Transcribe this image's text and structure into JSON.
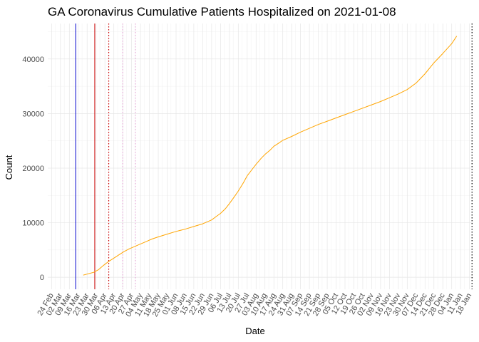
{
  "chart_data": {
    "type": "line",
    "title": "GA Coronavirus Cumulative Patients Hospitalized on 2021-01-08",
    "xlabel": "Date",
    "ylabel": "Count",
    "x_range": [
      "2020-02-21",
      "2021-01-21"
    ],
    "ylim": [
      -2200,
      46500
    ],
    "y_ticks": [
      0,
      10000,
      20000,
      30000,
      40000
    ],
    "x_ticks": [
      {
        "date": "2020-02-24",
        "label": "24 Feb"
      },
      {
        "date": "2020-03-02",
        "label": "02 Mar"
      },
      {
        "date": "2020-03-09",
        "label": "09 Mar"
      },
      {
        "date": "2020-03-16",
        "label": "16 Mar"
      },
      {
        "date": "2020-03-23",
        "label": "23 Mar"
      },
      {
        "date": "2020-03-30",
        "label": "30 Mar"
      },
      {
        "date": "2020-04-06",
        "label": "06 Apr"
      },
      {
        "date": "2020-04-13",
        "label": "13 Apr"
      },
      {
        "date": "2020-04-20",
        "label": "20 Apr"
      },
      {
        "date": "2020-04-27",
        "label": "27 Apr"
      },
      {
        "date": "2020-05-04",
        "label": "04 May"
      },
      {
        "date": "2020-05-11",
        "label": "11 May"
      },
      {
        "date": "2020-05-18",
        "label": "18 May"
      },
      {
        "date": "2020-05-25",
        "label": "25 May"
      },
      {
        "date": "2020-06-01",
        "label": "01 Jun"
      },
      {
        "date": "2020-06-08",
        "label": "08 Jun"
      },
      {
        "date": "2020-06-15",
        "label": "15 Jun"
      },
      {
        "date": "2020-06-22",
        "label": "22 Jun"
      },
      {
        "date": "2020-06-29",
        "label": "29 Jun"
      },
      {
        "date": "2020-07-06",
        "label": "06 Jul"
      },
      {
        "date": "2020-07-13",
        "label": "13 Jul"
      },
      {
        "date": "2020-07-20",
        "label": "20 Jul"
      },
      {
        "date": "2020-07-27",
        "label": "27 Jul"
      },
      {
        "date": "2020-08-03",
        "label": "03 Aug"
      },
      {
        "date": "2020-08-10",
        "label": "10 Aug"
      },
      {
        "date": "2020-08-17",
        "label": "17 Aug"
      },
      {
        "date": "2020-08-24",
        "label": "24 Aug"
      },
      {
        "date": "2020-08-31",
        "label": "31 Aug"
      },
      {
        "date": "2020-09-07",
        "label": "07 Sep"
      },
      {
        "date": "2020-09-14",
        "label": "14 Sep"
      },
      {
        "date": "2020-09-21",
        "label": "21 Sep"
      },
      {
        "date": "2020-09-28",
        "label": "28 Sep"
      },
      {
        "date": "2020-10-05",
        "label": "05 Oct"
      },
      {
        "date": "2020-10-12",
        "label": "12 Oct"
      },
      {
        "date": "2020-10-19",
        "label": "19 Oct"
      },
      {
        "date": "2020-10-26",
        "label": "26 Oct"
      },
      {
        "date": "2020-11-02",
        "label": "02 Nov"
      },
      {
        "date": "2020-11-09",
        "label": "09 Nov"
      },
      {
        "date": "2020-11-16",
        "label": "16 Nov"
      },
      {
        "date": "2020-11-23",
        "label": "23 Nov"
      },
      {
        "date": "2020-11-30",
        "label": "30 Nov"
      },
      {
        "date": "2020-12-07",
        "label": "07 Dec"
      },
      {
        "date": "2020-12-14",
        "label": "14 Dec"
      },
      {
        "date": "2020-12-21",
        "label": "21 Dec"
      },
      {
        "date": "2020-12-28",
        "label": "28 Dec"
      },
      {
        "date": "2021-01-04",
        "label": "04 Jan"
      },
      {
        "date": "2021-01-11",
        "label": "11 Jan"
      },
      {
        "date": "2021-01-18",
        "label": "18 Jan"
      }
    ],
    "vlines": [
      {
        "date": "2020-03-14",
        "color": "#0000cc",
        "style": "solid"
      },
      {
        "date": "2020-03-29",
        "color": "#cc0000",
        "style": "solid"
      },
      {
        "date": "2020-04-09",
        "color": "#cc0000",
        "style": "dotted"
      },
      {
        "date": "2020-04-20",
        "color": "#e6a8d8",
        "style": "dotted"
      },
      {
        "date": "2020-04-30",
        "color": "#e6a8d8",
        "style": "dotted"
      },
      {
        "date": "2021-01-20",
        "color": "#000000",
        "style": "dotted"
      }
    ],
    "series": [
      {
        "name": "Cumulative Patients Hospitalized",
        "color": "#ffa500",
        "points": [
          [
            "2020-03-20",
            400
          ],
          [
            "2020-03-24",
            650
          ],
          [
            "2020-03-28",
            900
          ],
          [
            "2020-04-01",
            1400
          ],
          [
            "2020-04-05",
            2200
          ],
          [
            "2020-04-09",
            2900
          ],
          [
            "2020-04-13",
            3500
          ],
          [
            "2020-04-17",
            4100
          ],
          [
            "2020-04-21",
            4700
          ],
          [
            "2020-04-25",
            5200
          ],
          [
            "2020-04-29",
            5600
          ],
          [
            "2020-05-03",
            6000
          ],
          [
            "2020-05-08",
            6500
          ],
          [
            "2020-05-13",
            7000
          ],
          [
            "2020-05-18",
            7400
          ],
          [
            "2020-05-25",
            7900
          ],
          [
            "2020-06-01",
            8400
          ],
          [
            "2020-06-08",
            8800
          ],
          [
            "2020-06-15",
            9300
          ],
          [
            "2020-06-22",
            9800
          ],
          [
            "2020-06-29",
            10500
          ],
          [
            "2020-07-03",
            11200
          ],
          [
            "2020-07-06",
            11700
          ],
          [
            "2020-07-10",
            12600
          ],
          [
            "2020-07-13",
            13500
          ],
          [
            "2020-07-17",
            14800
          ],
          [
            "2020-07-20",
            15800
          ],
          [
            "2020-07-24",
            17300
          ],
          [
            "2020-07-27",
            18600
          ],
          [
            "2020-07-31",
            19800
          ],
          [
            "2020-08-03",
            20700
          ],
          [
            "2020-08-07",
            21800
          ],
          [
            "2020-08-10",
            22500
          ],
          [
            "2020-08-14",
            23300
          ],
          [
            "2020-08-17",
            24000
          ],
          [
            "2020-08-21",
            24600
          ],
          [
            "2020-08-24",
            25100
          ],
          [
            "2020-08-31",
            25800
          ],
          [
            "2020-09-07",
            26600
          ],
          [
            "2020-09-14",
            27300
          ],
          [
            "2020-09-21",
            28000
          ],
          [
            "2020-09-28",
            28600
          ],
          [
            "2020-10-05",
            29200
          ],
          [
            "2020-10-12",
            29800
          ],
          [
            "2020-10-19",
            30400
          ],
          [
            "2020-10-26",
            31000
          ],
          [
            "2020-11-02",
            31600
          ],
          [
            "2020-11-09",
            32200
          ],
          [
            "2020-11-16",
            32900
          ],
          [
            "2020-11-23",
            33600
          ],
          [
            "2020-11-30",
            34400
          ],
          [
            "2020-12-07",
            35600
          ],
          [
            "2020-12-14",
            37300
          ],
          [
            "2020-12-21",
            39300
          ],
          [
            "2020-12-28",
            41000
          ],
          [
            "2021-01-04",
            42800
          ],
          [
            "2021-01-08",
            44200
          ]
        ]
      }
    ]
  }
}
